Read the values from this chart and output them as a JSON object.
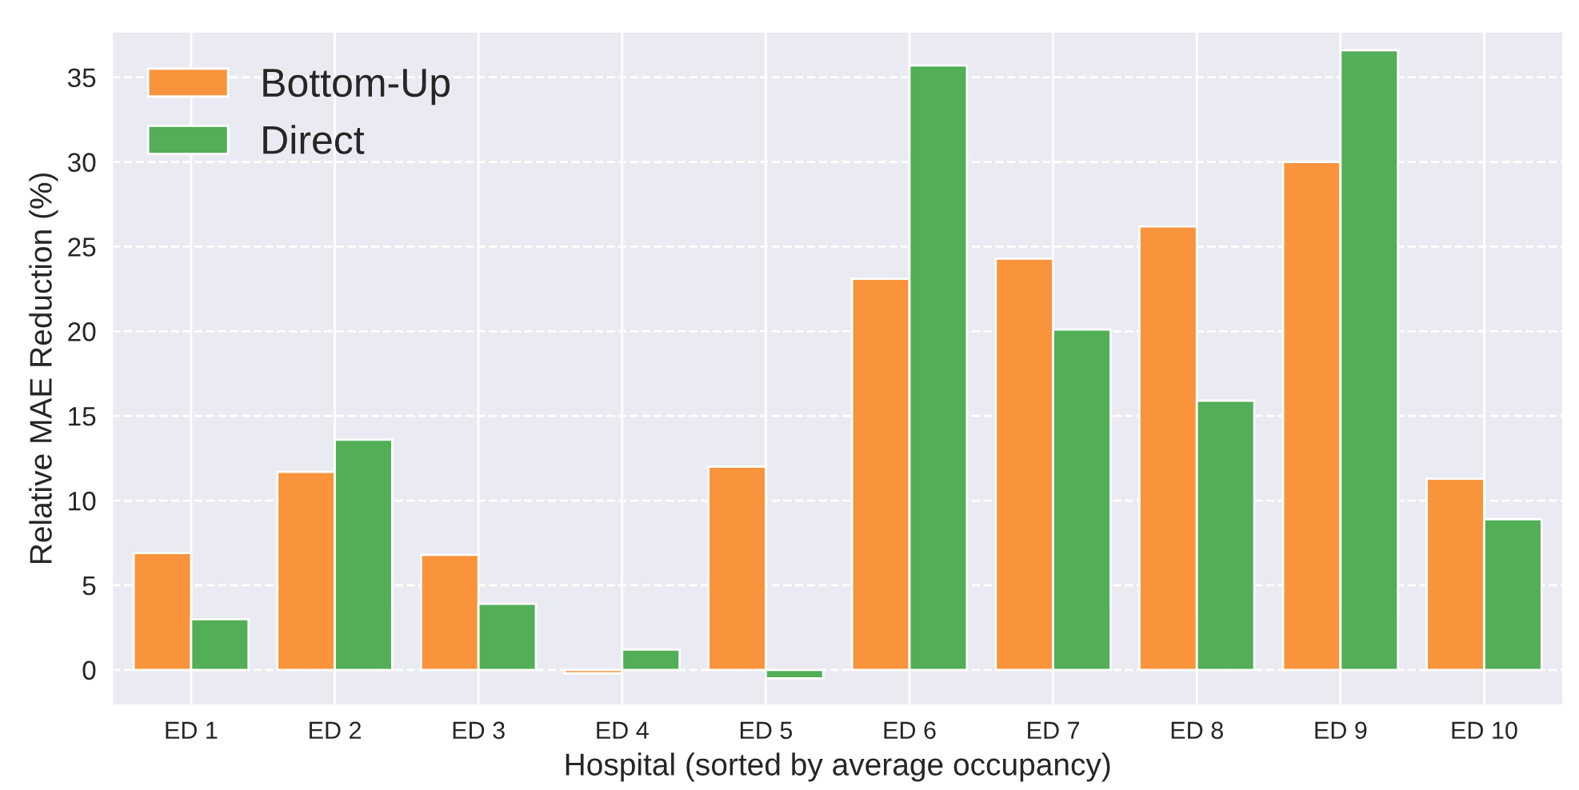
{
  "chart_data": {
    "type": "bar",
    "xlabel": "Hospital (sorted by average occupancy)",
    "ylabel": "Relative MAE Reduction (%)",
    "categories": [
      "ED 1",
      "ED 2",
      "ED 3",
      "ED 4",
      "ED 5",
      "ED 6",
      "ED 7",
      "ED 8",
      "ED 9",
      "ED 10"
    ],
    "series": [
      {
        "name": "Bottom-Up",
        "color": "#f9943c",
        "values": [
          6.9,
          11.7,
          6.8,
          -0.2,
          12.0,
          23.1,
          24.3,
          26.2,
          30.0,
          11.3
        ]
      },
      {
        "name": "Direct",
        "color": "#52ae57",
        "values": [
          3.0,
          13.6,
          3.9,
          1.2,
          -0.5,
          35.7,
          20.1,
          15.9,
          36.6,
          8.9
        ]
      }
    ],
    "ylim": [
      -2.1,
      37.7
    ],
    "yticks": [
      0,
      5,
      10,
      15,
      20,
      25,
      30,
      35
    ],
    "grid": true,
    "legend": "top left"
  }
}
